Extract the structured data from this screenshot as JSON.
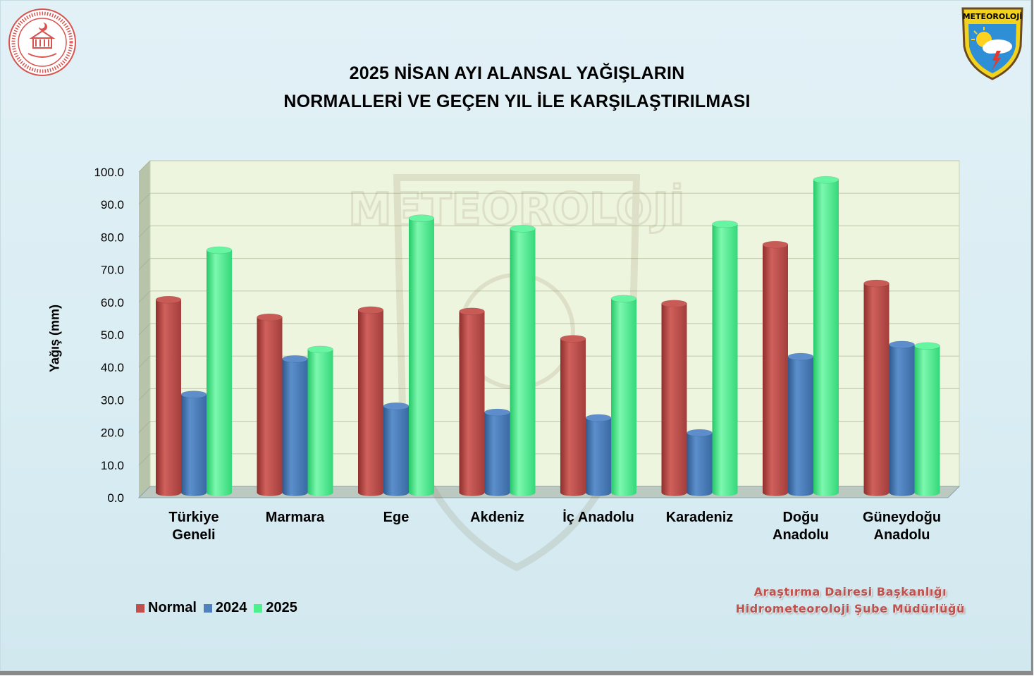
{
  "header": {
    "title_line1": "2025 NİSAN AYI ALANSAL YAĞIŞLARIN",
    "title_line2": "NORMALLERİ VE GEÇEN YIL İLE KARŞILAŞTIRILMASI"
  },
  "logo": {
    "text": "METEOROLOJİ",
    "icon": "meteoroloji-shield-icon"
  },
  "watermark": {
    "text": "METEOROLOJİ"
  },
  "seal": {
    "icon": "ministry-seal-icon"
  },
  "credit": {
    "line1": "Araştırma Dairesi Başkanlığı",
    "line2": "Hidrometeoroloji Şube Müdürlüğü"
  },
  "colors": {
    "Normal": "#c0504d",
    "2024": "#4f81bd",
    "2025": "#4cf08c",
    "plot_back": "#eef5df",
    "credit": "#c0504d"
  },
  "chart_data": {
    "type": "bar",
    "title": "2025 NİSAN AYI ALANSAL YAĞIŞLARIN NORMALLERİ VE GEÇEN YIL İLE KARŞILAŞTIRILMASI",
    "ylabel": "Yağış (mm)",
    "xlabel": "",
    "ylim": [
      0,
      100
    ],
    "y_ticks": [
      "0.0",
      "10.0",
      "20.0",
      "30.0",
      "40.0",
      "50.0",
      "60.0",
      "70.0",
      "80.0",
      "90.0",
      "100.0"
    ],
    "grid": true,
    "legend_position": "bottom-left",
    "categories": [
      [
        "Türkiye",
        "Geneli"
      ],
      [
        "Marmara"
      ],
      [
        "Ege"
      ],
      [
        "Akdeniz"
      ],
      [
        "İç Anadolu"
      ],
      [
        "Karadeniz"
      ],
      [
        "Doğu",
        "Anadolu"
      ],
      [
        "Güneydoğu",
        "Anadolu"
      ]
    ],
    "series": [
      {
        "name": "Normal",
        "values": [
          57.5,
          52.1,
          54.3,
          53.9,
          45.5,
          56.3,
          74.4,
          62.5
        ]
      },
      {
        "name": "2024",
        "values": [
          28.4,
          39.3,
          24.8,
          22.9,
          21.2,
          16.6,
          40.0,
          43.7
        ]
      },
      {
        "name": "2025",
        "values": [
          72.7,
          42.2,
          82.5,
          79.3,
          57.8,
          80.7,
          94.3,
          43.3
        ]
      }
    ]
  }
}
